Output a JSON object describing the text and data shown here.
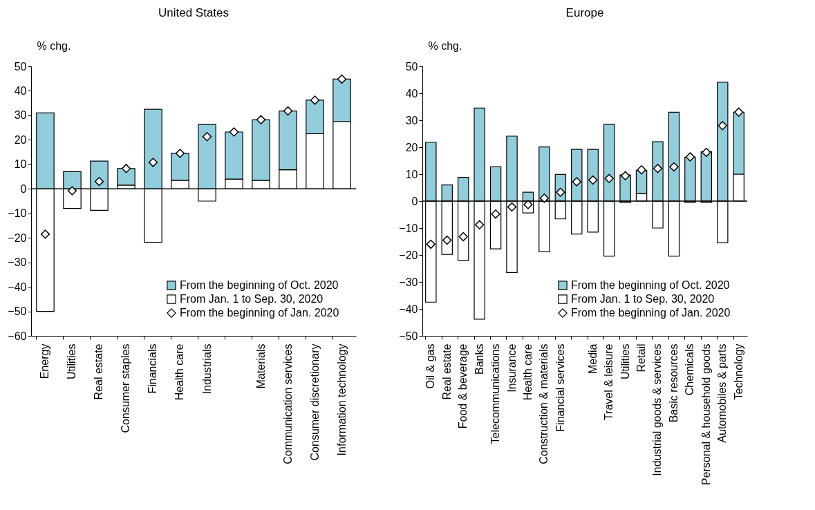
{
  "chart_data": [
    {
      "type": "bar",
      "title": "United States",
      "ylabel": "% chg.",
      "stacked": true,
      "legend": "bottom right",
      "grid": false,
      "marker": "diamond",
      "categories": [
        "Energy",
        "Utilities",
        "Real estate",
        "Consumer staples",
        "Financials",
        "Health care",
        "Industrials",
        null,
        "Materials",
        "Communication services",
        "Consumer discretionary",
        "Information technology"
      ],
      "ref_lines": [
        {
          "axis": "y",
          "value": 0,
          "color": "#000000"
        }
      ],
      "ylim": [
        -60,
        50
      ],
      "yticks": [
        -60,
        -50,
        -40,
        -30,
        -20,
        -10,
        0,
        10,
        20,
        30,
        40,
        50
      ],
      "series": [
        {
          "name": "From Jan. 1 to Sep. 30, 2020",
          "type": "bar",
          "color": "#ffffff",
          "values": [
            -50,
            -8,
            -8.8,
            1.5,
            -21.8,
            3.5,
            -5,
            4,
            3.5,
            7.8,
            22.5,
            27.5
          ]
        },
        {
          "name": "From the beginning of Oct. 2020",
          "type": "bar",
          "color": "#92cddc",
          "values": [
            31,
            7,
            11.3,
            6.8,
            32.5,
            11,
            26.3,
            19.2,
            24.7,
            24,
            13.7,
            17.3
          ]
        },
        {
          "name": "From the beginning of Jan. 2020",
          "type": "scatter",
          "color": "#ffffff",
          "values": [
            -18.5,
            -0.8,
            3,
            8.3,
            10.8,
            14.5,
            21.3,
            23.2,
            28.2,
            31.8,
            36.2,
            44.8
          ]
        }
      ]
    },
    {
      "type": "bar",
      "title": "Europe",
      "ylabel": "% chg.",
      "stacked": true,
      "legend": "bottom right",
      "grid": false,
      "marker": "diamond",
      "categories": [
        "Oil & gas",
        "Real estate",
        "Food & beverage",
        "Banks",
        "Telecommunications",
        "Insurance",
        "Health care",
        "Construction & materials",
        "Financial services",
        null,
        "Media",
        "Travel & leisure",
        "Utilities",
        "Retail",
        "Industrial goods & services",
        "Basic resources",
        "Chemicals",
        "Personal & household goods",
        "Automobiles & parts",
        "Technology"
      ],
      "ref_lines": [
        {
          "axis": "y",
          "value": 0,
          "color": "#000000"
        }
      ],
      "ylim": [
        -50,
        50
      ],
      "yticks": [
        -50,
        -40,
        -30,
        -20,
        -10,
        0,
        10,
        20,
        30,
        40,
        50
      ],
      "series": [
        {
          "name": "From Jan. 1 to Sep. 30, 2020",
          "type": "bar",
          "color": "#ffffff",
          "values": [
            -37.5,
            -19.8,
            -22,
            -43.8,
            -17.7,
            -26.5,
            -4.4,
            -18.8,
            -6.6,
            -12.2,
            -11.5,
            -20.4,
            -0.5,
            2.8,
            -10,
            -20.4,
            -0.5,
            -0.5,
            -15.5,
            10
          ]
        },
        {
          "name": "From the beginning of Oct. 2020",
          "type": "bar",
          "color": "#92cddc",
          "values": [
            21.8,
            6,
            8.8,
            34.5,
            12.7,
            24.1,
            3.3,
            20.1,
            9.9,
            19.2,
            19.2,
            28.5,
            9.7,
            8.6,
            22,
            33,
            16.3,
            18.3,
            44.1,
            23
          ]
        },
        {
          "name": "From the beginning of Jan. 2020",
          "type": "scatter",
          "color": "#ffffff",
          "values": [
            -16,
            -14.5,
            -13.2,
            -8.8,
            -4.8,
            -2.2,
            -1.3,
            1.1,
            3.3,
            7.2,
            7.8,
            8.4,
            9.4,
            11.6,
            12.1,
            12.7,
            16.4,
            18.1,
            28,
            33
          ]
        }
      ]
    }
  ]
}
